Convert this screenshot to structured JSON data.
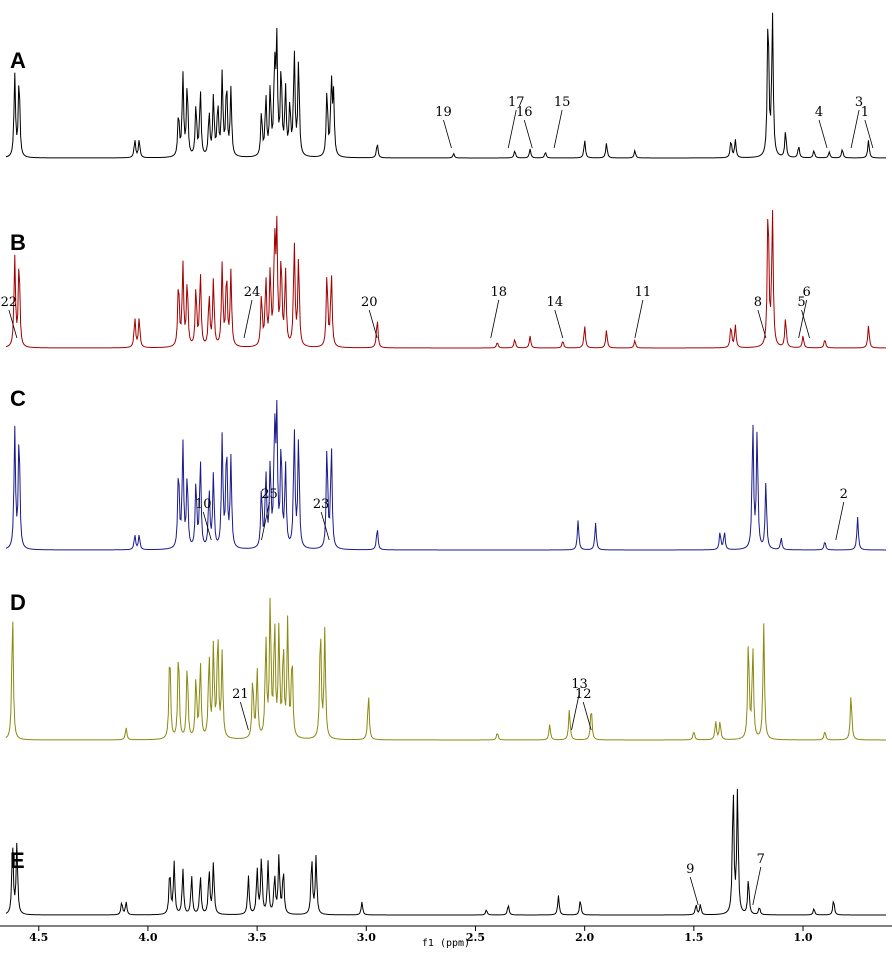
{
  "chart_data": {
    "type": "line",
    "xlabel": "f1 (ppm)",
    "x_ticks": [
      4.5,
      4.0,
      3.5,
      3.0,
      2.5,
      2.0,
      1.5,
      1.0
    ],
    "x_tick_labels": [
      "4.5",
      "4.0",
      "3.5",
      "3.0",
      "2.5",
      "2.0",
      "1.5",
      "1.0"
    ],
    "xlim": [
      4.65,
      0.62
    ],
    "grid": false,
    "panels": [
      {
        "label": "A",
        "color": "#000000",
        "peaks": [
          [
            4.61,
            0.55
          ],
          [
            4.59,
            0.55
          ],
          [
            4.06,
            0.12
          ],
          [
            4.04,
            0.12
          ],
          [
            3.86,
            0.3
          ],
          [
            3.84,
            0.55
          ],
          [
            3.82,
            0.5
          ],
          [
            3.78,
            0.35
          ],
          [
            3.76,
            0.45
          ],
          [
            3.72,
            0.3
          ],
          [
            3.7,
            0.4
          ],
          [
            3.68,
            0.35
          ],
          [
            3.66,
            0.55
          ],
          [
            3.64,
            0.5
          ],
          [
            3.62,
            0.45
          ],
          [
            3.48,
            0.3
          ],
          [
            3.46,
            0.4
          ],
          [
            3.44,
            0.45
          ],
          [
            3.42,
            0.6
          ],
          [
            3.41,
            0.75
          ],
          [
            3.39,
            0.6
          ],
          [
            3.37,
            0.45
          ],
          [
            3.35,
            0.35
          ],
          [
            3.33,
            0.7
          ],
          [
            3.31,
            0.65
          ],
          [
            3.18,
            0.45
          ],
          [
            3.16,
            0.5
          ],
          [
            3.15,
            0.4
          ],
          [
            2.95,
            0.1
          ],
          [
            2.6,
            0.03
          ],
          [
            2.32,
            0.05
          ],
          [
            2.25,
            0.06
          ],
          [
            2.18,
            0.04
          ],
          [
            2.0,
            0.12
          ],
          [
            1.9,
            0.1
          ],
          [
            1.77,
            0.05
          ],
          [
            1.33,
            0.12
          ],
          [
            1.31,
            0.12
          ],
          [
            1.16,
            1.0
          ],
          [
            1.14,
            0.95
          ],
          [
            1.08,
            0.18
          ],
          [
            1.02,
            0.08
          ],
          [
            0.95,
            0.05
          ],
          [
            0.88,
            0.04
          ],
          [
            0.82,
            0.06
          ],
          [
            0.7,
            0.12
          ]
        ],
        "annotations": [
          {
            "text": "19",
            "ppm": 2.61
          },
          {
            "text": "17",
            "ppm": 2.35
          },
          {
            "text": "16",
            "ppm": 2.24
          },
          {
            "text": "15",
            "ppm": 2.14
          },
          {
            "text": "4",
            "ppm": 0.89
          },
          {
            "text": "3",
            "ppm": 0.78
          },
          {
            "text": "1",
            "ppm": 0.68
          }
        ]
      },
      {
        "label": "B",
        "color": "#a40000",
        "peaks": [
          [
            4.61,
            0.6
          ],
          [
            4.59,
            0.6
          ],
          [
            4.06,
            0.2
          ],
          [
            4.04,
            0.2
          ],
          [
            3.86,
            0.45
          ],
          [
            3.84,
            0.55
          ],
          [
            3.82,
            0.45
          ],
          [
            3.78,
            0.4
          ],
          [
            3.76,
            0.5
          ],
          [
            3.72,
            0.35
          ],
          [
            3.7,
            0.45
          ],
          [
            3.66,
            0.55
          ],
          [
            3.64,
            0.5
          ],
          [
            3.62,
            0.5
          ],
          [
            3.48,
            0.35
          ],
          [
            3.46,
            0.45
          ],
          [
            3.44,
            0.5
          ],
          [
            3.42,
            0.7
          ],
          [
            3.41,
            0.75
          ],
          [
            3.39,
            0.6
          ],
          [
            3.37,
            0.5
          ],
          [
            3.33,
            0.7
          ],
          [
            3.31,
            0.6
          ],
          [
            3.18,
            0.5
          ],
          [
            3.16,
            0.5
          ],
          [
            2.95,
            0.2
          ],
          [
            2.4,
            0.04
          ],
          [
            2.32,
            0.06
          ],
          [
            2.25,
            0.08
          ],
          [
            2.1,
            0.05
          ],
          [
            2.0,
            0.15
          ],
          [
            1.9,
            0.12
          ],
          [
            1.77,
            0.05
          ],
          [
            1.33,
            0.15
          ],
          [
            1.31,
            0.15
          ],
          [
            1.16,
            1.0
          ],
          [
            1.14,
            0.9
          ],
          [
            1.08,
            0.2
          ],
          [
            1.0,
            0.08
          ],
          [
            0.9,
            0.06
          ],
          [
            0.7,
            0.15
          ]
        ],
        "annotations": [
          {
            "text": "22",
            "ppm": 4.6
          },
          {
            "text": "24",
            "ppm": 3.56
          },
          {
            "text": "20",
            "ppm": 2.95
          },
          {
            "text": "18",
            "ppm": 2.43
          },
          {
            "text": "14",
            "ppm": 2.1
          },
          {
            "text": "11",
            "ppm": 1.77
          },
          {
            "text": "8",
            "ppm": 1.17
          },
          {
            "text": "6",
            "ppm": 1.02
          },
          {
            "text": "5",
            "ppm": 0.97
          }
        ]
      },
      {
        "label": "C",
        "color": "#1a1a8c",
        "peaks": [
          [
            4.61,
            0.8
          ],
          [
            4.59,
            0.8
          ],
          [
            4.06,
            0.1
          ],
          [
            4.04,
            0.1
          ],
          [
            3.86,
            0.55
          ],
          [
            3.84,
            0.7
          ],
          [
            3.82,
            0.5
          ],
          [
            3.78,
            0.45
          ],
          [
            3.76,
            0.6
          ],
          [
            3.72,
            0.4
          ],
          [
            3.7,
            0.5
          ],
          [
            3.66,
            0.75
          ],
          [
            3.64,
            0.7
          ],
          [
            3.62,
            0.6
          ],
          [
            3.48,
            0.4
          ],
          [
            3.46,
            0.5
          ],
          [
            3.44,
            0.55
          ],
          [
            3.42,
            0.8
          ],
          [
            3.41,
            0.85
          ],
          [
            3.39,
            0.7
          ],
          [
            3.37,
            0.55
          ],
          [
            3.33,
            0.8
          ],
          [
            3.31,
            0.75
          ],
          [
            3.18,
            0.7
          ],
          [
            3.16,
            0.7
          ],
          [
            2.95,
            0.15
          ],
          [
            2.03,
            0.2
          ],
          [
            1.95,
            0.18
          ],
          [
            1.38,
            0.12
          ],
          [
            1.36,
            0.12
          ],
          [
            1.23,
            0.85
          ],
          [
            1.21,
            0.8
          ],
          [
            1.17,
            0.45
          ],
          [
            1.1,
            0.08
          ],
          [
            0.9,
            0.06
          ],
          [
            0.75,
            0.22
          ]
        ],
        "annotations": [
          {
            "text": "10",
            "ppm": 3.71
          },
          {
            "text": "25",
            "ppm": 3.48
          },
          {
            "text": "23",
            "ppm": 3.17
          },
          {
            "text": "2",
            "ppm": 0.85
          }
        ]
      },
      {
        "label": "D",
        "color": "#8a8a10",
        "peaks": [
          [
            4.62,
            0.85
          ],
          [
            4.1,
            0.08
          ],
          [
            3.9,
            0.6
          ],
          [
            3.86,
            0.6
          ],
          [
            3.82,
            0.5
          ],
          [
            3.78,
            0.4
          ],
          [
            3.76,
            0.5
          ],
          [
            3.72,
            0.55
          ],
          [
            3.7,
            0.6
          ],
          [
            3.68,
            0.7
          ],
          [
            3.66,
            0.55
          ],
          [
            3.52,
            0.4
          ],
          [
            3.5,
            0.45
          ],
          [
            3.46,
            0.65
          ],
          [
            3.44,
            0.9
          ],
          [
            3.42,
            0.75
          ],
          [
            3.4,
            0.7
          ],
          [
            3.38,
            0.6
          ],
          [
            3.36,
            0.75
          ],
          [
            3.34,
            0.55
          ],
          [
            3.21,
            0.75
          ],
          [
            3.19,
            0.7
          ],
          [
            2.99,
            0.3
          ],
          [
            2.4,
            0.05
          ],
          [
            2.16,
            0.1
          ],
          [
            2.07,
            0.2
          ],
          [
            1.97,
            0.22
          ],
          [
            1.5,
            0.06
          ],
          [
            1.4,
            0.12
          ],
          [
            1.38,
            0.12
          ],
          [
            1.25,
            0.65
          ],
          [
            1.23,
            0.6
          ],
          [
            1.18,
            0.75
          ],
          [
            0.9,
            0.06
          ],
          [
            0.78,
            0.3
          ]
        ],
        "annotations": [
          {
            "text": "21",
            "ppm": 3.54
          },
          {
            "text": "13",
            "ppm": 2.06
          },
          {
            "text": "12",
            "ppm": 1.97
          }
        ]
      },
      {
        "label": "E",
        "color": "#000000",
        "peaks": [
          [
            4.62,
            0.55
          ],
          [
            4.6,
            0.55
          ],
          [
            4.12,
            0.1
          ],
          [
            4.1,
            0.1
          ],
          [
            3.9,
            0.35
          ],
          [
            3.88,
            0.4
          ],
          [
            3.84,
            0.35
          ],
          [
            3.8,
            0.3
          ],
          [
            3.76,
            0.3
          ],
          [
            3.72,
            0.35
          ],
          [
            3.7,
            0.4
          ],
          [
            3.54,
            0.3
          ],
          [
            3.5,
            0.35
          ],
          [
            3.48,
            0.45
          ],
          [
            3.45,
            0.4
          ],
          [
            3.42,
            0.3
          ],
          [
            3.4,
            0.45
          ],
          [
            3.38,
            0.35
          ],
          [
            3.25,
            0.45
          ],
          [
            3.23,
            0.45
          ],
          [
            3.02,
            0.1
          ],
          [
            2.45,
            0.04
          ],
          [
            2.35,
            0.08
          ],
          [
            2.12,
            0.15
          ],
          [
            2.02,
            0.12
          ],
          [
            1.49,
            0.08
          ],
          [
            1.47,
            0.08
          ],
          [
            1.32,
            1.0
          ],
          [
            1.3,
            0.95
          ],
          [
            1.25,
            0.28
          ],
          [
            1.2,
            0.06
          ],
          [
            0.95,
            0.05
          ],
          [
            0.86,
            0.12
          ]
        ],
        "annotations": [
          {
            "text": "9",
            "ppm": 1.48
          },
          {
            "text": "7",
            "ppm": 1.23
          }
        ]
      }
    ]
  }
}
